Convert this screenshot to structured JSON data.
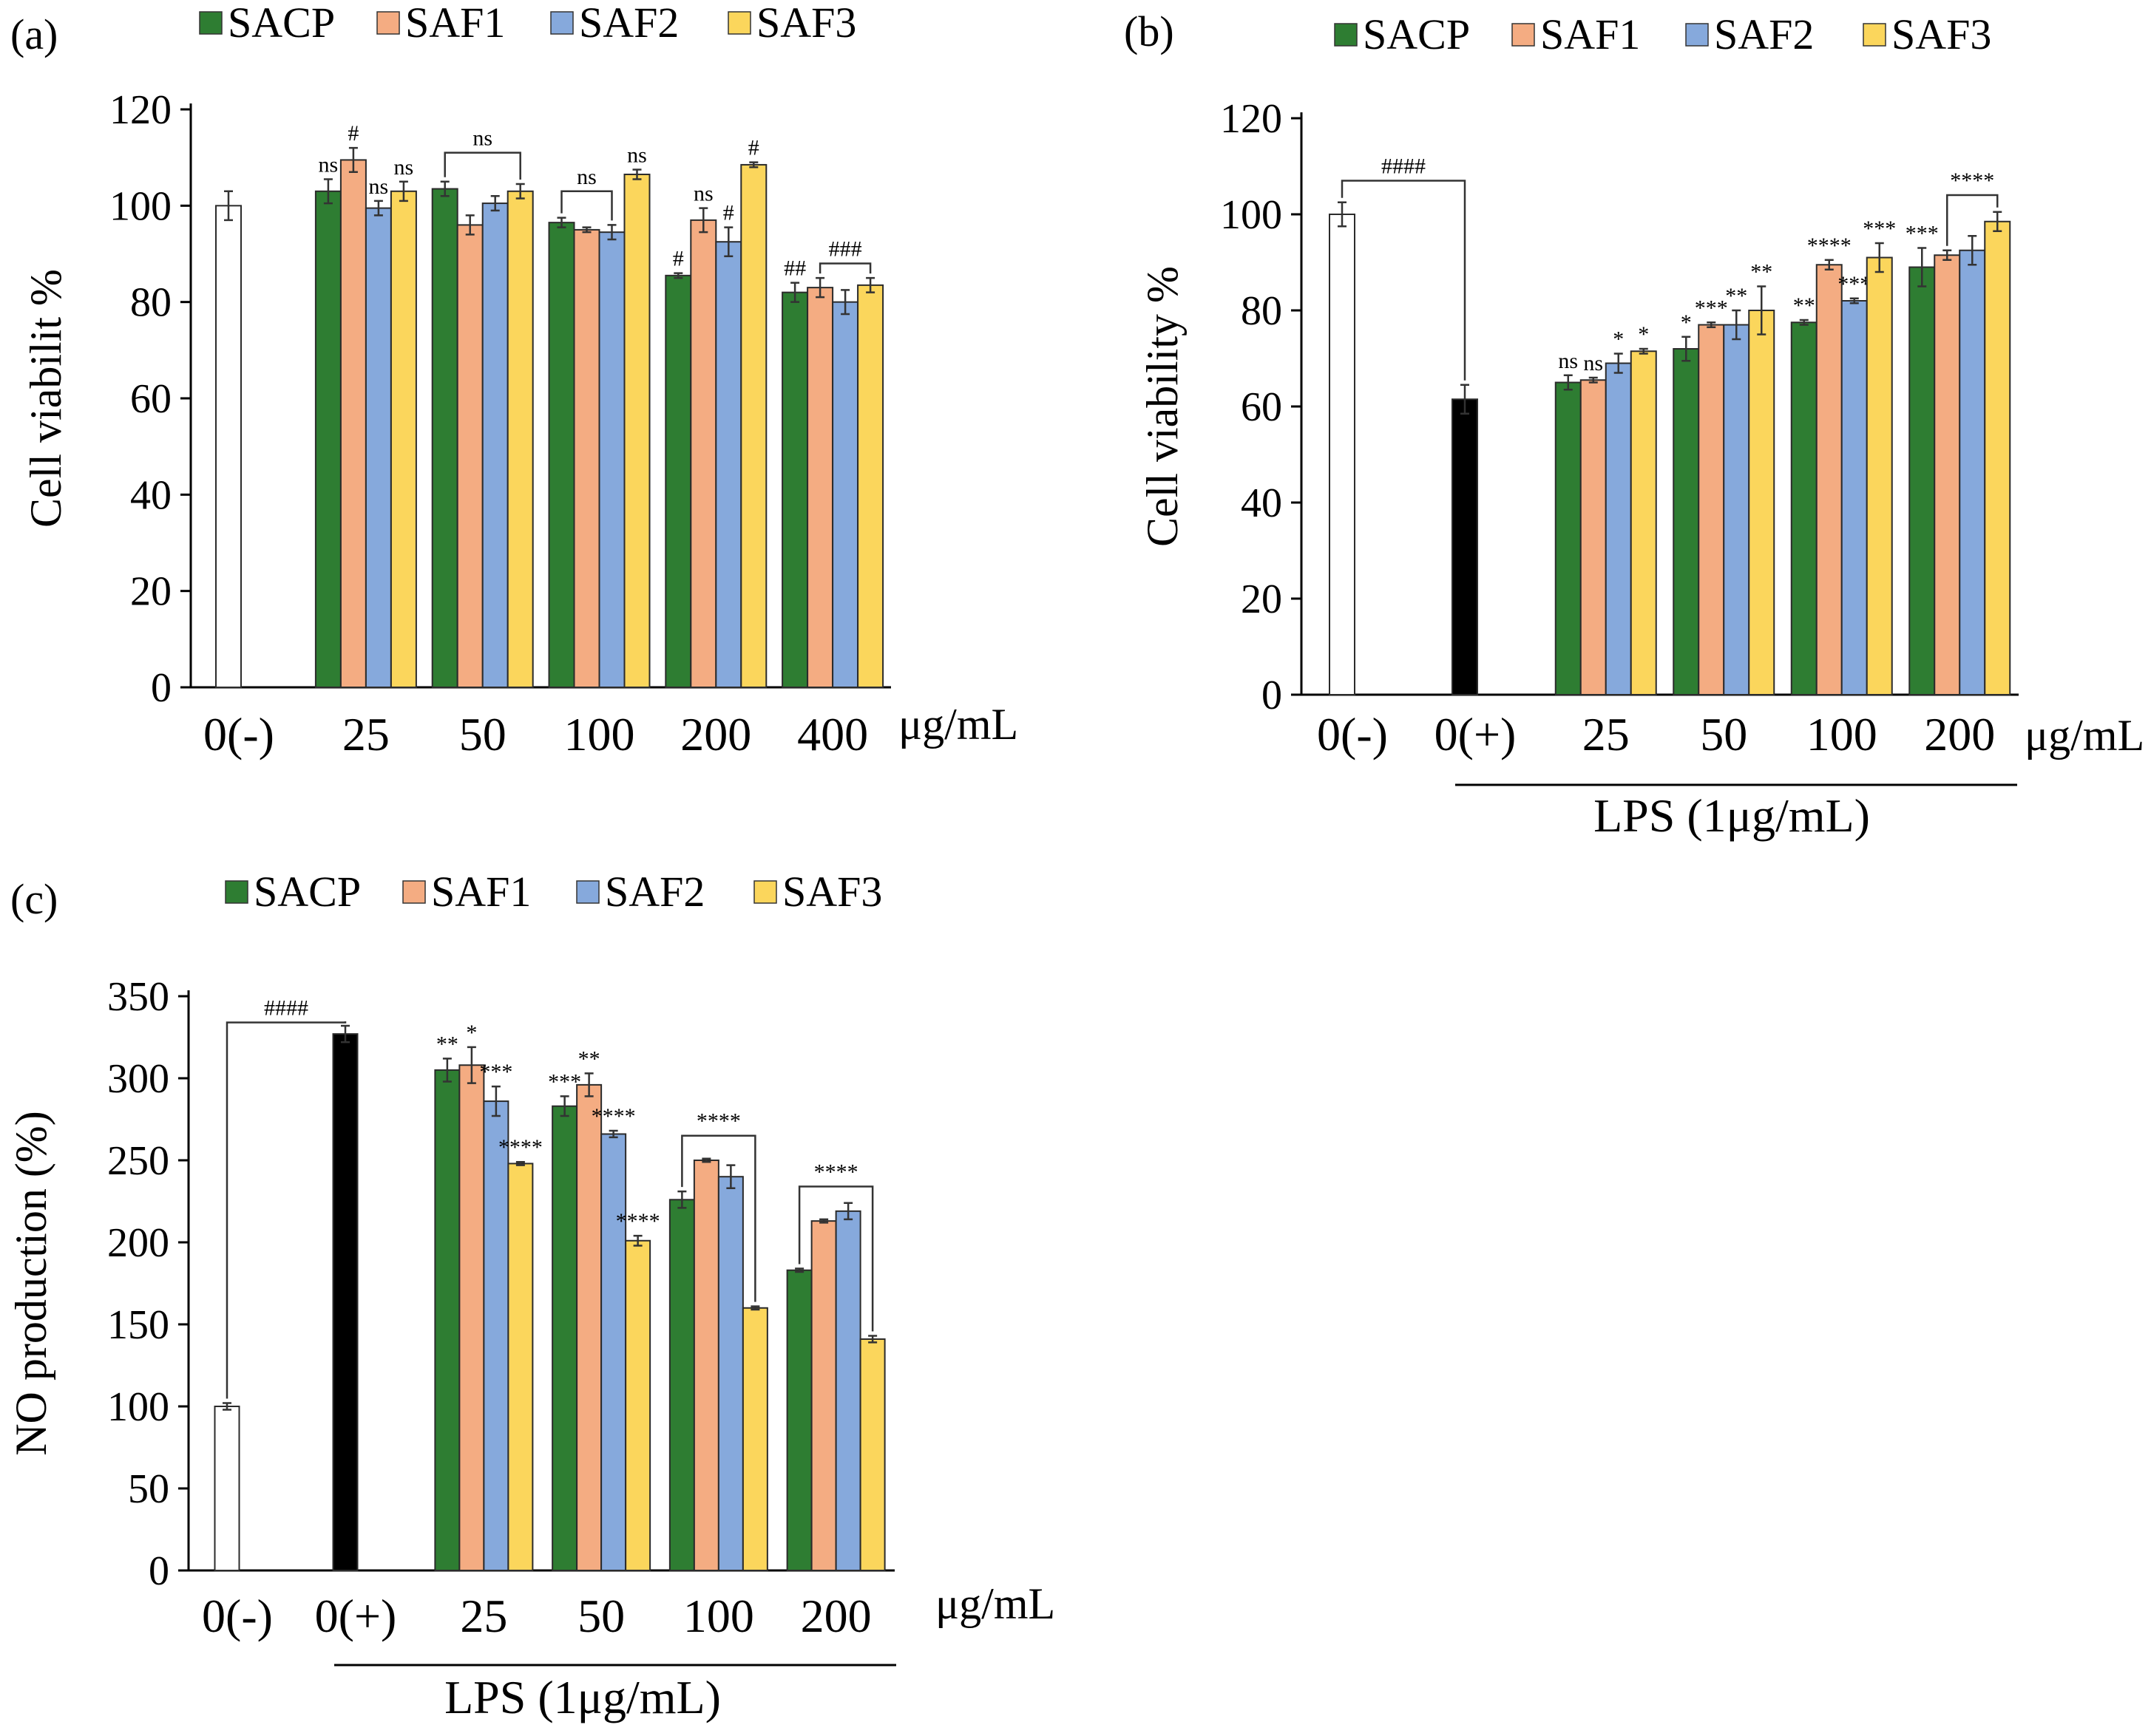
{
  "colors": {
    "SACP": "#2e7d32",
    "SAF1": "#f4ac82",
    "SAF2": "#86a9dc",
    "SAF3": "#fbd65c",
    "control_neg": "#ffffff",
    "control_pos": "#000000"
  },
  "chart_data": [
    {
      "panel": "(a)",
      "type": "bar",
      "ylabel": "Cell viabilit %",
      "unit": "μg/mL",
      "ylim": [
        0,
        120
      ],
      "yticks": [
        0,
        20,
        40,
        60,
        80,
        100,
        120
      ],
      "legend": [
        "SACP",
        "SAF1",
        "SAF2",
        "SAF3"
      ],
      "controls": [
        {
          "label": "0(-)",
          "value": 100,
          "err": 3,
          "fill": "control_neg"
        }
      ],
      "groups": [
        {
          "label": "25",
          "values": [
            103,
            109.5,
            99.5,
            103
          ],
          "errs": [
            2.5,
            2.5,
            1.5,
            2
          ],
          "sig": [
            "ns",
            "#",
            "ns",
            "ns"
          ]
        },
        {
          "label": "50",
          "values": [
            103.5,
            96,
            100.5,
            103
          ],
          "errs": [
            1.5,
            2,
            1.5,
            1.5
          ],
          "sig": [
            "",
            "",
            "",
            ""
          ]
        },
        {
          "label": "100",
          "values": [
            96.5,
            95,
            94.5,
            106.5
          ],
          "errs": [
            1,
            0.5,
            1.5,
            1
          ],
          "sig": [
            "",
            "",
            "",
            "ns"
          ]
        },
        {
          "label": "200",
          "values": [
            85.5,
            97,
            92.5,
            108.5
          ],
          "errs": [
            0.5,
            2.5,
            3,
            0.5
          ],
          "sig": [
            "#",
            "ns",
            "#",
            "#"
          ]
        },
        {
          "label": "400",
          "values": [
            82,
            83,
            80,
            83.5
          ],
          "errs": [
            2,
            2,
            2.5,
            1.5
          ],
          "sig": [
            "##",
            "",
            "",
            ""
          ]
        }
      ],
      "brackets": [
        {
          "group": 1,
          "from": 0,
          "to": 3,
          "text": "ns",
          "level": 111
        },
        {
          "group": 2,
          "from": 0,
          "to": 2,
          "text": "ns",
          "level": 103
        },
        {
          "group": 4,
          "from": 1,
          "to": 3,
          "text": "###",
          "level": 88
        }
      ]
    },
    {
      "panel": "(b)",
      "type": "bar",
      "ylabel": "Cell viability %",
      "unit": "μg/mL",
      "group_caption": "LPS (1μg/mL)",
      "ylim": [
        0,
        120
      ],
      "yticks": [
        0,
        20,
        40,
        60,
        80,
        100,
        120
      ],
      "legend": [
        "SACP",
        "SAF1",
        "SAF2",
        "SAF3"
      ],
      "controls": [
        {
          "label": "0(-)",
          "value": 100,
          "err": 2.5,
          "fill": "control_neg"
        },
        {
          "label": "0(+)",
          "value": 61.5,
          "err": 3,
          "fill": "control_pos"
        }
      ],
      "groups": [
        {
          "label": "25",
          "values": [
            65,
            65.5,
            69,
            71.5
          ],
          "errs": [
            1.5,
            0.5,
            2,
            0.5
          ],
          "sig": [
            "ns",
            "ns",
            "*",
            "*"
          ]
        },
        {
          "label": "50",
          "values": [
            72,
            77,
            77,
            80
          ],
          "errs": [
            2.5,
            0.5,
            3,
            5
          ],
          "sig": [
            "*",
            "***",
            "**",
            "**"
          ]
        },
        {
          "label": "100",
          "values": [
            77.5,
            89.5,
            82,
            91
          ],
          "errs": [
            0.5,
            1,
            0.5,
            3
          ],
          "sig": [
            "**",
            "****",
            "***",
            "***"
          ]
        },
        {
          "label": "200",
          "values": [
            89,
            91.5,
            92.5,
            98.5
          ],
          "errs": [
            4,
            1,
            3,
            2
          ],
          "sig": [
            "***",
            "",
            "",
            ""
          ]
        }
      ],
      "brackets": [
        {
          "control_from": 0,
          "control_to": 1,
          "text": "####",
          "level": 107
        },
        {
          "group": 3,
          "from": 1,
          "to": 3,
          "text": "****",
          "level": 104
        }
      ]
    },
    {
      "panel": "(c)",
      "type": "bar",
      "ylabel": "NO production (%)",
      "unit": "μg/mL",
      "group_caption": "LPS (1μg/mL)",
      "ylim": [
        0,
        350
      ],
      "yticks": [
        0,
        50,
        100,
        150,
        200,
        250,
        300,
        350
      ],
      "legend": [
        "SACP",
        "SAF1",
        "SAF2",
        "SAF3"
      ],
      "controls": [
        {
          "label": "0(-)",
          "value": 100,
          "err": 2,
          "fill": "control_neg"
        },
        {
          "label": "0(+)",
          "value": 327,
          "err": 5,
          "fill": "control_pos"
        }
      ],
      "groups": [
        {
          "label": "25",
          "values": [
            305,
            308,
            286,
            248
          ],
          "errs": [
            7,
            11,
            9,
            1
          ],
          "sig": [
            "**",
            "*",
            "***",
            "****"
          ]
        },
        {
          "label": "50",
          "values": [
            283,
            296,
            266,
            201
          ],
          "errs": [
            6,
            7,
            2,
            3
          ],
          "sig": [
            "***",
            "**",
            "****",
            "****"
          ]
        },
        {
          "label": "100",
          "values": [
            226,
            250,
            240,
            160
          ],
          "errs": [
            5,
            1,
            7,
            1
          ],
          "sig": [
            "",
            "",
            "",
            ""
          ]
        },
        {
          "label": "200",
          "values": [
            183,
            213,
            219,
            141
          ],
          "errs": [
            1,
            1,
            5,
            2
          ],
          "sig": [
            "",
            "",
            "",
            ""
          ]
        }
      ],
      "brackets": [
        {
          "control_from": 0,
          "control_to": 1,
          "text": "####",
          "level": 334
        },
        {
          "group": 2,
          "from": 0,
          "to": 3,
          "text": "****",
          "level": 265
        },
        {
          "group": 3,
          "from": 0,
          "to": 3,
          "text": "****",
          "level": 234
        }
      ]
    }
  ]
}
